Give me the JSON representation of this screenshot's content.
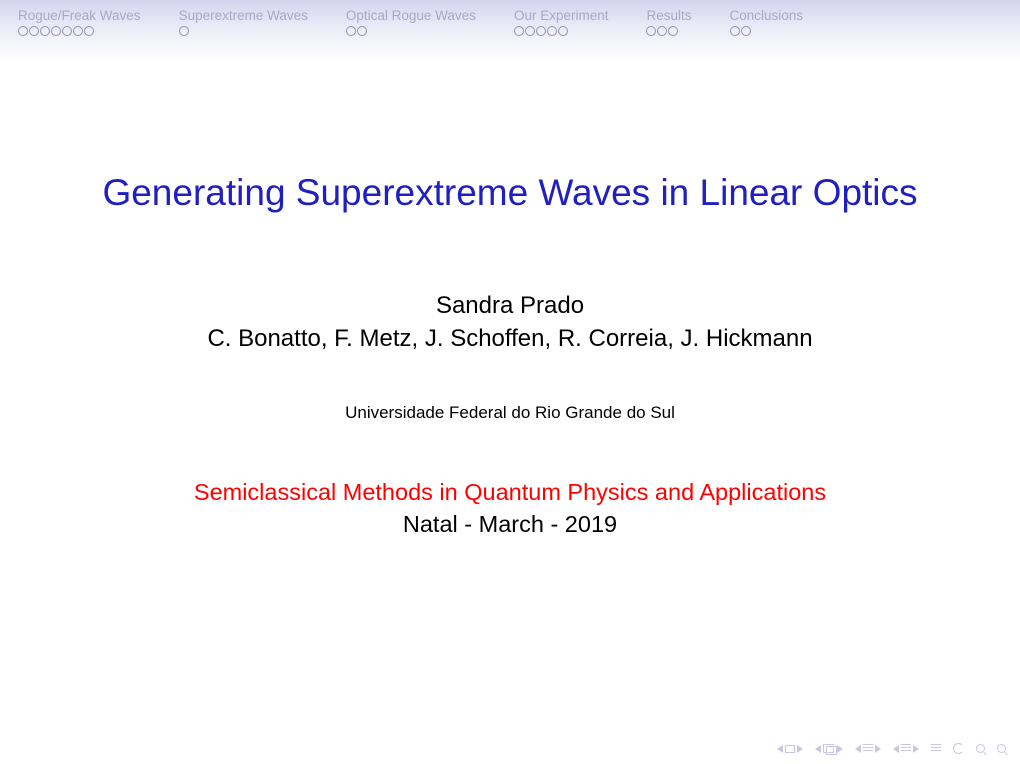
{
  "nav": {
    "sections": [
      {
        "label": "Rogue/Freak Waves",
        "dots": 7
      },
      {
        "label": "Superextreme Waves",
        "dots": 1
      },
      {
        "label": "Optical Rogue Waves",
        "dots": 2
      },
      {
        "label": "Our Experiment",
        "dots": 5
      },
      {
        "label": "Results",
        "dots": 3
      },
      {
        "label": "Conclusions",
        "dots": 2
      }
    ]
  },
  "title": "Generating Superextreme Waves in Linear Optics",
  "author_main": "Sandra Prado",
  "authors_co": "C. Bonatto, F. Metz, J. Schoffen, R. Correia, J. Hickmann",
  "institute": "Universidade Federal do Rio Grande do Sul",
  "conference": "Semiclassical Methods in Quantum Physics and Applications",
  "date_place": "Natal - March - 2019",
  "colors": {
    "title": "#2020c0",
    "conference": "#ff0000",
    "nav_text": "#a8a8c8",
    "nav_dot_border": "#9090b0",
    "footer_icon": "#c8c8e0",
    "header_gradient_top": "#d4d4ef",
    "header_gradient_bottom": "#ffffff"
  },
  "typography": {
    "title_fontsize": 37,
    "author_fontsize": 24,
    "institute_fontsize": 17,
    "conference_fontsize": 23.5,
    "nav_fontsize": 13.5
  }
}
